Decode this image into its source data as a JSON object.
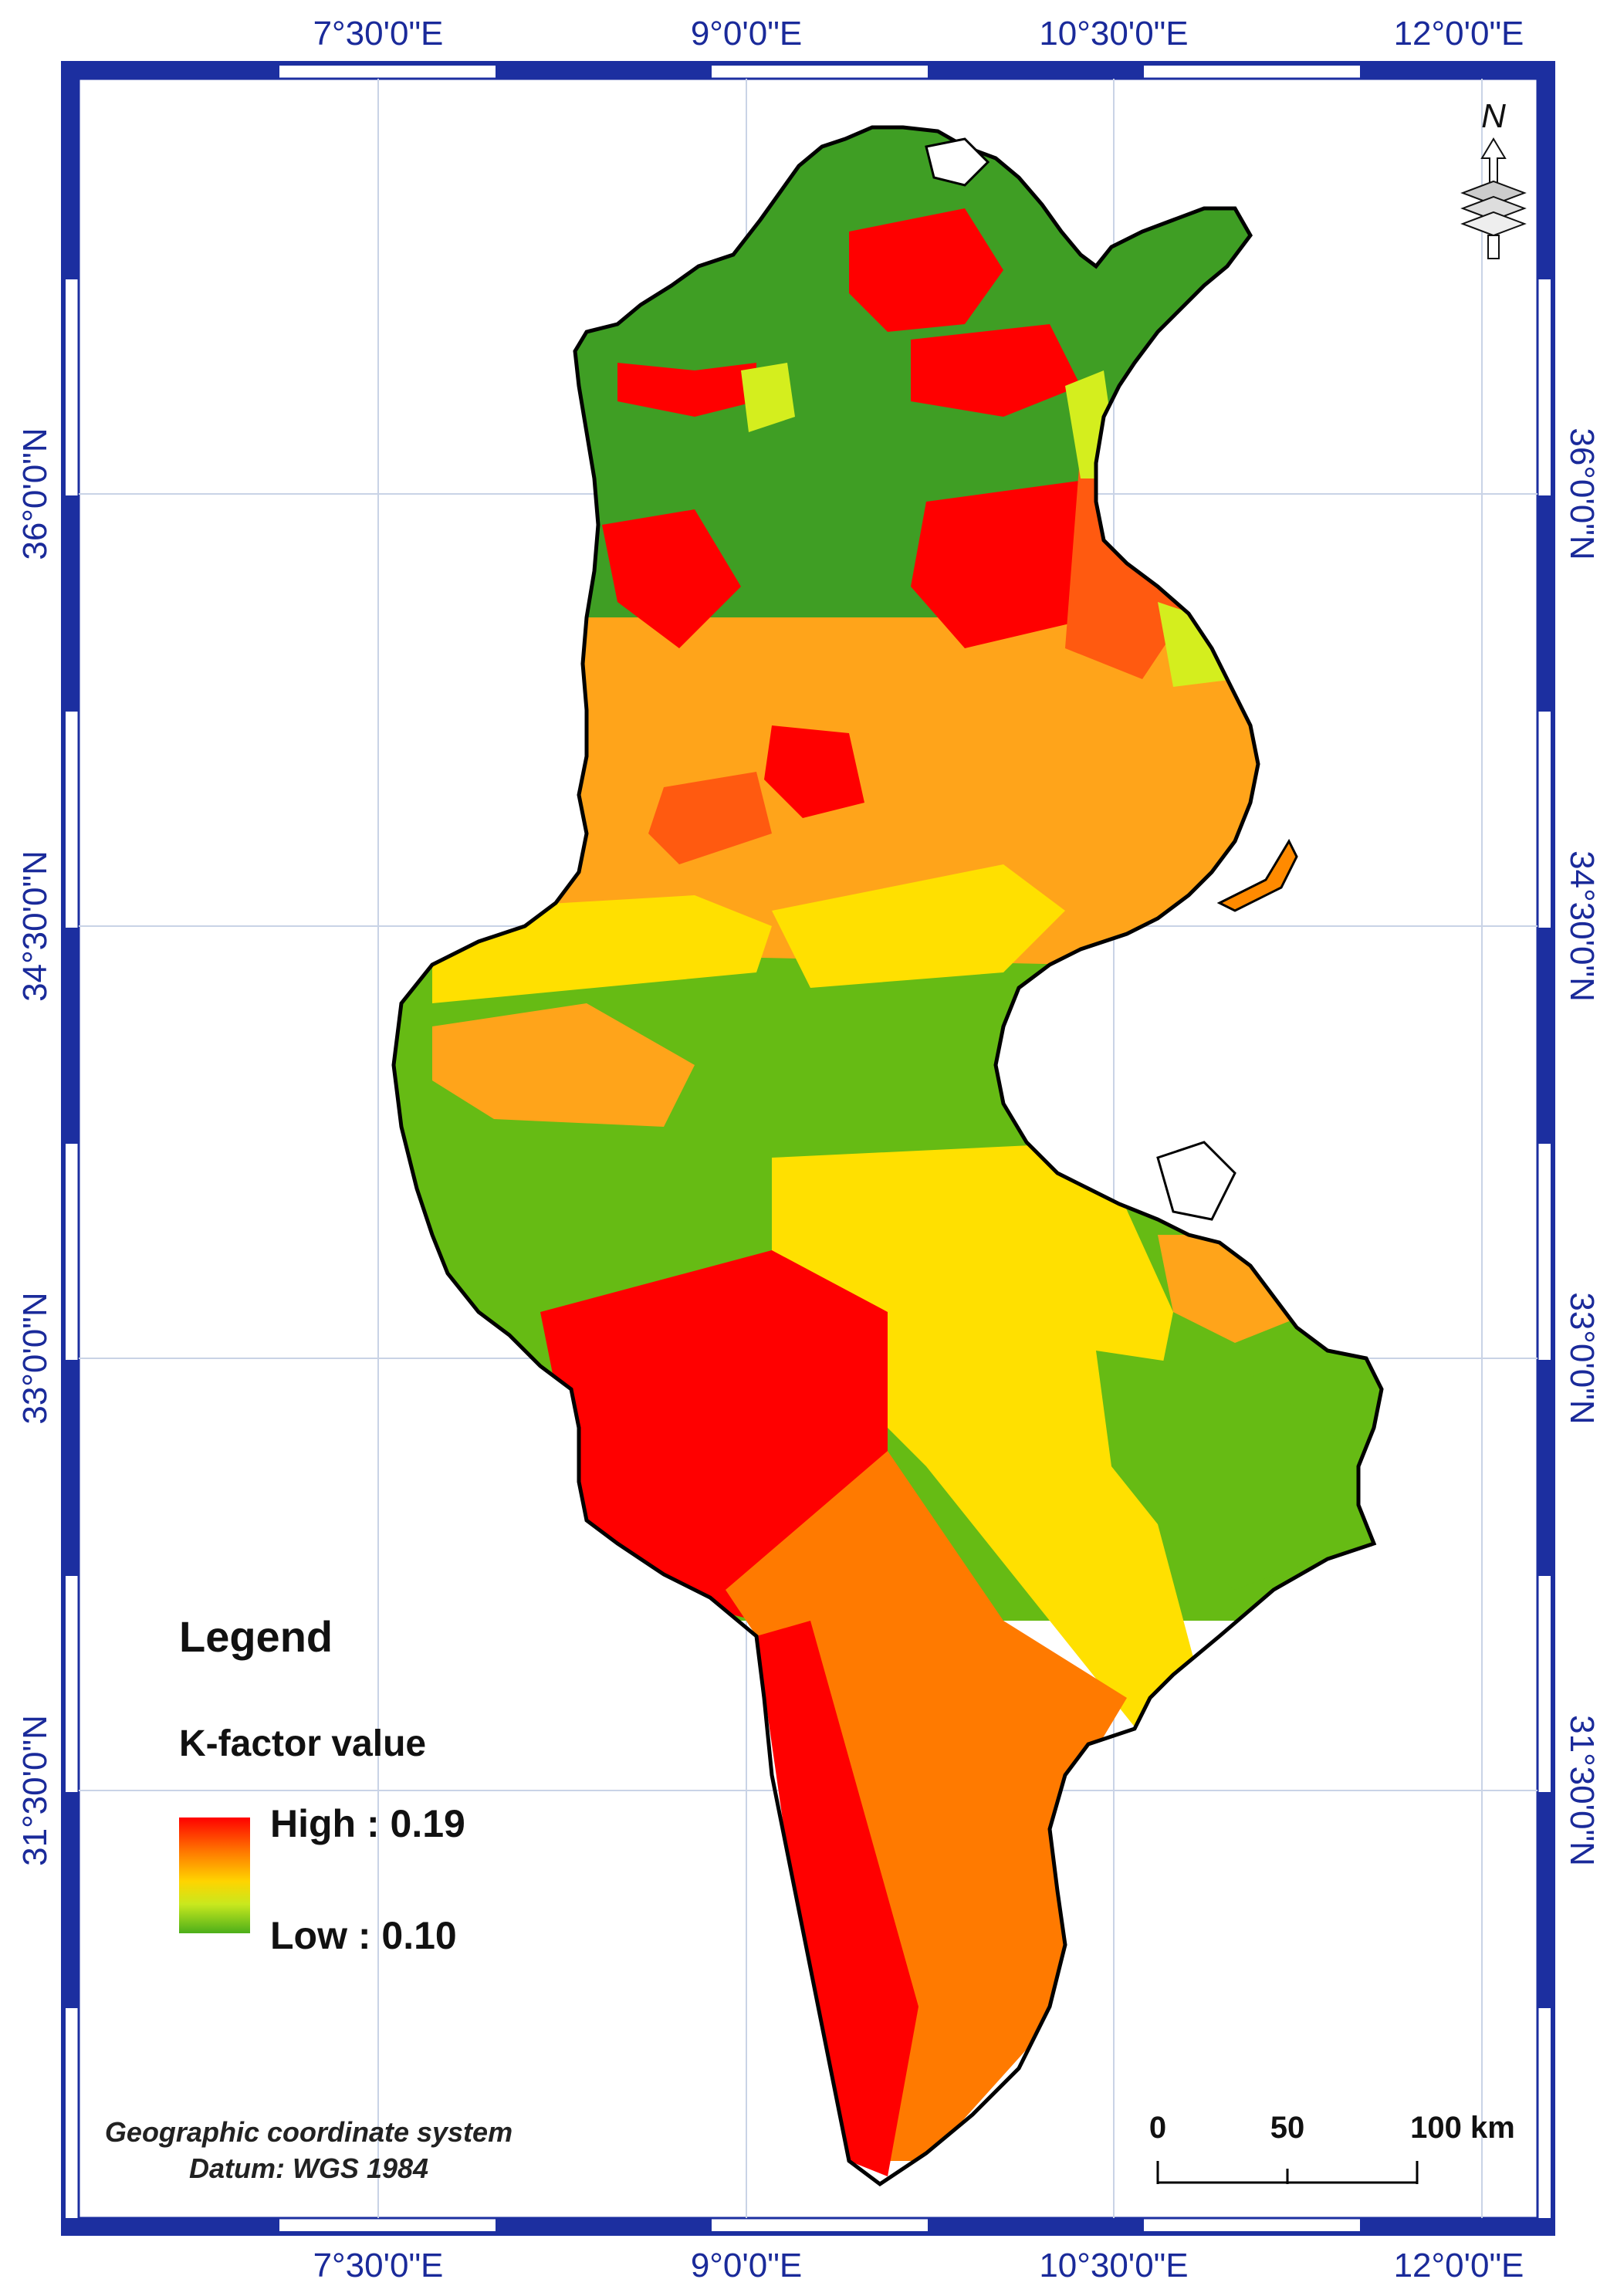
{
  "map": {
    "longitude_labels": [
      "7°30'0\"E",
      "9°0'0\"E",
      "10°30'0\"E",
      "12°0'0\"E"
    ],
    "latitude_labels": [
      "36°0'0\"N",
      "34°30'0\"N",
      "33°0'0\"N",
      "31°30'0\"N"
    ],
    "frame_color": "#1c2fa0",
    "country_outline_color": "#000000"
  },
  "legend": {
    "title": "Legend",
    "variable": "K-factor value",
    "high_label": "High : 0.19",
    "low_label": "Low : 0.10",
    "ramp_colors": [
      "#ff0000",
      "#ff7a00",
      "#ffd400",
      "#c8e81e",
      "#4caf1a"
    ]
  },
  "info": {
    "line1": "Geographic coordinate system",
    "line2": "Datum: WGS 1984"
  },
  "scale_bar": {
    "labels": [
      "0",
      "50",
      "100 km"
    ]
  },
  "north_arrow": {
    "letter": "N"
  },
  "classes": {
    "red": "#ff0000",
    "orange_red": "#ff5a10",
    "orange": "#ff8a00",
    "light_orange": "#ffa41a",
    "yellow": "#ffe000",
    "yellow_green": "#d4ee1e",
    "light_green": "#66bb14",
    "green": "#3f9e24"
  }
}
